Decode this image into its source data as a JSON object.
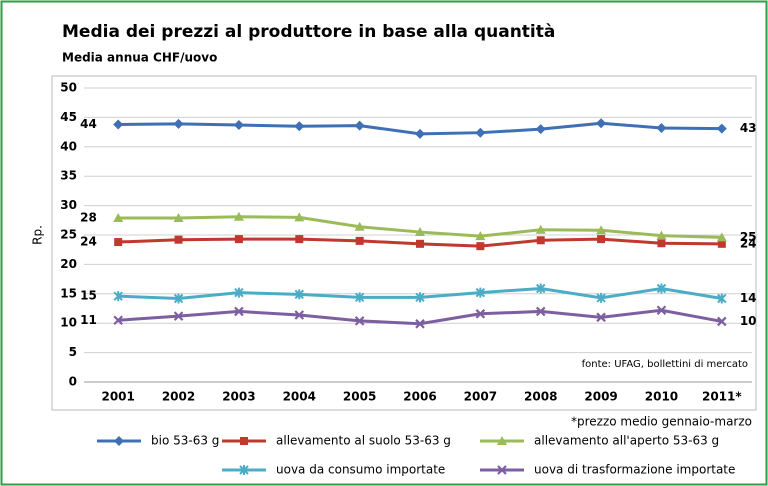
{
  "chart_data": {
    "type": "line",
    "title": "Media dei prezzi al produttore in base alla quantità",
    "subtitle": "Media annua CHF/uovo",
    "y_label": "Rp.",
    "source_note": "fonte: UFAG, bollettini di mercato",
    "footnote": "*prezzo medio gennaio-marzo",
    "categories": [
      "2001",
      "2002",
      "2003",
      "2004",
      "2005",
      "2006",
      "2007",
      "2008",
      "2009",
      "2010",
      "2011*"
    ],
    "ylim": [
      0,
      50
    ],
    "yticks": [
      0,
      5,
      10,
      15,
      20,
      25,
      30,
      35,
      40,
      45,
      50
    ],
    "grid": true,
    "series": [
      {
        "name": "bio 53-63 g",
        "color": "#3f6fb5",
        "marker": "diamond",
        "values": [
          43.8,
          43.9,
          43.7,
          43.5,
          43.6,
          42.2,
          42.4,
          43.0,
          44.0,
          43.2,
          43.1
        ],
        "value_labels": [
          "44",
          null,
          null,
          null,
          null,
          null,
          null,
          null,
          null,
          null,
          "43"
        ]
      },
      {
        "name": "allevamento al suolo 53-63 g",
        "color": "#c0392f",
        "marker": "square",
        "values": [
          23.8,
          24.2,
          24.3,
          24.3,
          24.0,
          23.5,
          23.1,
          24.1,
          24.3,
          23.6,
          23.5
        ],
        "value_labels": [
          "24",
          null,
          null,
          null,
          null,
          null,
          null,
          null,
          null,
          null,
          "24"
        ]
      },
      {
        "name": "allevamento all'aperto 53-63 g",
        "color": "#9bbb59",
        "marker": "triangle",
        "values": [
          27.9,
          27.9,
          28.1,
          28.0,
          26.4,
          25.5,
          24.8,
          25.9,
          25.8,
          24.9,
          24.6
        ],
        "value_labels": [
          "28",
          null,
          null,
          null,
          null,
          null,
          null,
          null,
          null,
          null,
          "25"
        ]
      },
      {
        "name": "uova da consumo importate",
        "color": "#4bacc6",
        "marker": "star",
        "values": [
          14.6,
          14.2,
          15.2,
          14.9,
          14.4,
          14.4,
          15.2,
          15.9,
          14.3,
          15.9,
          14.2
        ],
        "value_labels": [
          "15",
          null,
          null,
          null,
          null,
          null,
          null,
          null,
          null,
          null,
          "14"
        ]
      },
      {
        "name": "uova di trasformazione importate",
        "color": "#7d5ea0",
        "marker": "x",
        "values": [
          10.5,
          11.2,
          12.0,
          11.4,
          10.4,
          9.9,
          11.6,
          12.0,
          11.0,
          12.2,
          10.3
        ],
        "value_labels": [
          "11",
          null,
          null,
          null,
          null,
          null,
          null,
          null,
          null,
          null,
          "10"
        ]
      }
    ]
  }
}
